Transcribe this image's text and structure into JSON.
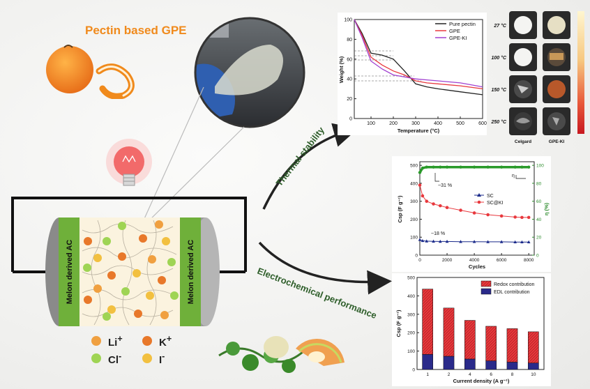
{
  "title": "Pectin based GPE",
  "electrode_label": "Melon derived AC",
  "ions": [
    {
      "symbol": "Li",
      "charge": "+",
      "color": "#f0a040"
    },
    {
      "symbol": "K",
      "charge": "+",
      "color": "#e8782a"
    },
    {
      "symbol": "Cl",
      "charge": "-",
      "color": "#9fd454"
    },
    {
      "symbol": "I",
      "charge": "-",
      "color": "#f2c040"
    }
  ],
  "arrow_top_label": "Thermal stability",
  "arrow_bottom_label": "Electrochemical performance",
  "tga": {
    "xlabel": "Temperature (°C)",
    "ylabel": "Weight (%)",
    "xticks": [
      "100",
      "200",
      "300",
      "400",
      "500",
      "600"
    ],
    "yticks": [
      "0",
      "20",
      "40",
      "60",
      "80",
      "100"
    ],
    "legend": [
      "Pure pectin",
      "GPE",
      "GPE-KI"
    ],
    "colors": [
      "#222222",
      "#e8383d",
      "#a040d0"
    ],
    "chart_data": {
      "type": "line",
      "x": [
        25,
        60,
        100,
        150,
        200,
        250,
        300,
        350,
        400,
        500,
        600
      ],
      "series": [
        {
          "name": "Pure pectin",
          "values": [
            100,
            86,
            66,
            64,
            60,
            48,
            35,
            32,
            30,
            27,
            24
          ]
        },
        {
          "name": "GPE",
          "values": [
            100,
            84,
            62,
            54,
            48,
            44,
            38,
            36,
            35,
            33,
            30
          ]
        },
        {
          "name": "GPE-KI",
          "values": [
            100,
            82,
            58,
            50,
            44,
            42,
            40,
            39,
            38,
            36,
            32
          ]
        }
      ],
      "xlim": [
        25,
        600
      ],
      "ylim": [
        0,
        100
      ]
    }
  },
  "temps": [
    "27 °C",
    "100 °C",
    "150 °C",
    "250 °C"
  ],
  "sample_labels": [
    "Celgard",
    "GPE-KI"
  ],
  "cycling": {
    "xlabel": "Cycles",
    "ylabel": "Csp (F g⁻¹)",
    "y2label": "η (%)",
    "xticks": [
      "0",
      "2000",
      "4000",
      "6000",
      "8000"
    ],
    "yticks": [
      "0",
      "100",
      "200",
      "300",
      "400",
      "500"
    ],
    "y2ticks": [
      "0",
      "20",
      "40",
      "60",
      "80",
      "100"
    ],
    "legend": [
      "SC",
      "SC@KI"
    ],
    "annot_top": "~31 %",
    "annot_bottom": "~18 %",
    "eta_label": "η",
    "chart_data": {
      "type": "line",
      "x": [
        0,
        200,
        500,
        1000,
        1500,
        2000,
        3000,
        4000,
        5000,
        6000,
        7000,
        7500,
        8000
      ],
      "series": [
        {
          "name": "SC@KI",
          "values": [
            390,
            330,
            300,
            285,
            275,
            265,
            250,
            235,
            225,
            218,
            212,
            210,
            210
          ]
        },
        {
          "name": "SC",
          "values": [
            86,
            80,
            78,
            77,
            76,
            76,
            75,
            75,
            74,
            74,
            73,
            73,
            73
          ]
        },
        {
          "name": "Coulombic efficiency",
          "values": [
            92,
            97,
            98,
            98,
            98,
            98,
            98,
            98,
            98,
            98,
            98,
            98,
            98
          ]
        }
      ],
      "xlim": [
        0,
        8400
      ],
      "ylim": [
        0,
        520
      ]
    }
  },
  "rate": {
    "xlabel": "Current density (A g⁻¹)",
    "ylabel": "Csp (F g⁻¹)",
    "legend": [
      "Redox contribution",
      "EDL contribution"
    ],
    "yticks": [
      "0",
      "100",
      "200",
      "300",
      "400",
      "500"
    ],
    "chart_data": {
      "type": "bar",
      "categories": [
        "1",
        "2",
        "4",
        "6",
        "8",
        "10"
      ],
      "series": [
        {
          "name": "EDL contribution",
          "values": [
            82,
            72,
            57,
            47,
            40,
            35
          ]
        },
        {
          "name": "Redox contribution",
          "values": [
            355,
            262,
            210,
            188,
            182,
            170
          ]
        }
      ],
      "ylim": [
        0,
        500
      ]
    }
  },
  "colors": {
    "orange": "#f08a1c",
    "green": "#7dbb42",
    "dark_green": "#2e5e2a",
    "red": "#e8383d"
  }
}
